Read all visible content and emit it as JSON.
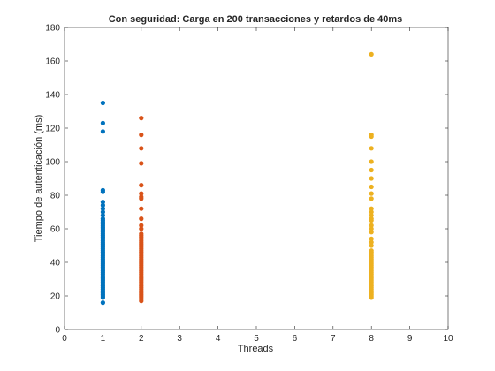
{
  "chart_data": {
    "type": "scatter",
    "title": "Con seguridad: Carga en 200 transacciones y retardos de 40ms",
    "xlabel": "Threads",
    "ylabel": "Tiempo de autenticación (ms)",
    "xlim": [
      0,
      10
    ],
    "ylim": [
      0,
      180
    ],
    "xticks": [
      "0",
      "1",
      "2",
      "3",
      "4",
      "5",
      "6",
      "7",
      "8",
      "9",
      "10"
    ],
    "yticks": [
      "0",
      "20",
      "40",
      "60",
      "80",
      "100",
      "120",
      "140",
      "160",
      "180"
    ],
    "grid": false,
    "series": [
      {
        "color": "#0072BD",
        "x": 1,
        "values": [
          135,
          123,
          118,
          83,
          82,
          76,
          74,
          72,
          70,
          68,
          66,
          65,
          64,
          63,
          62,
          61,
          60,
          59,
          58,
          57,
          56,
          55,
          54,
          53,
          52,
          51,
          50,
          49,
          48,
          47,
          46,
          45,
          44,
          43,
          42,
          41,
          40,
          39,
          38,
          37,
          36,
          35,
          34,
          33,
          32,
          31,
          30,
          29,
          28,
          27,
          26,
          25,
          24,
          23,
          22,
          21,
          20,
          19,
          16
        ]
      },
      {
        "color": "#D95319",
        "x": 2,
        "values": [
          126,
          116,
          108,
          99,
          86,
          81,
          79,
          78,
          72,
          66,
          62,
          60,
          57,
          56,
          55,
          54,
          53,
          52,
          51,
          50,
          49,
          48,
          47,
          46,
          45,
          44,
          43,
          42,
          41,
          40,
          39,
          38,
          37,
          36,
          35,
          34,
          33,
          32,
          31,
          30,
          29,
          28,
          27,
          26,
          25,
          24,
          23,
          22,
          21,
          20,
          19,
          18,
          17
        ]
      },
      {
        "color": "#EDB120",
        "x": 8,
        "values": [
          164,
          116,
          115,
          108,
          100,
          95,
          90,
          85,
          81,
          78,
          72,
          70,
          68,
          66,
          65,
          62,
          60,
          58,
          54,
          52,
          50,
          47,
          46,
          45,
          44,
          43,
          42,
          41,
          40,
          39,
          38,
          37,
          36,
          35,
          34,
          33,
          32,
          31,
          30,
          29,
          28,
          27,
          26,
          25,
          24,
          23,
          22,
          21,
          20,
          19
        ]
      }
    ]
  }
}
